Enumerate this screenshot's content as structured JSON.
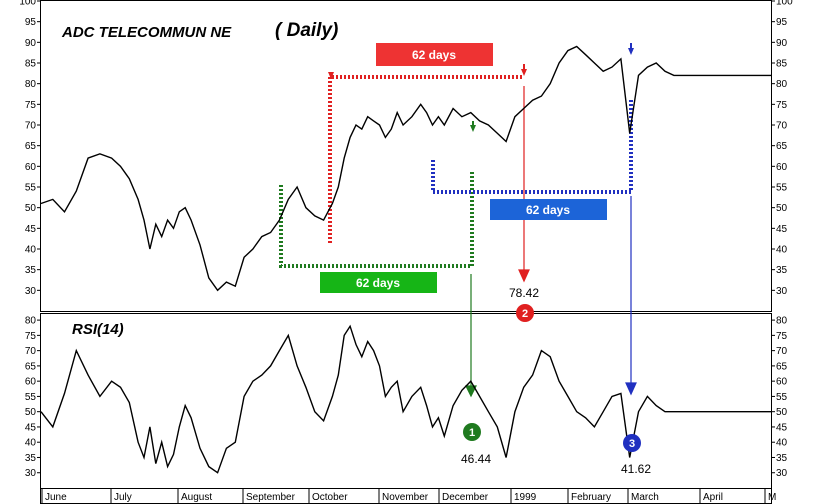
{
  "chart_data": [
    {
      "type": "line",
      "title": "ADC TELECOMMUN NE",
      "subtitle": "( Daily)",
      "y_axis_side": "both",
      "ylim": [
        25,
        100
      ],
      "yticks": [
        30,
        35,
        40,
        45,
        50,
        55,
        60,
        65,
        70,
        75,
        80,
        85,
        90,
        95,
        100
      ],
      "grid": false,
      "x_months": [
        "June",
        "July",
        "August",
        "September",
        "October",
        "November",
        "December",
        "1999",
        "February",
        "March",
        "April",
        "M"
      ],
      "series": [
        {
          "x": [
            0,
            4,
            8,
            12,
            16,
            20,
            24,
            27,
            30,
            33,
            35,
            37,
            39,
            41,
            43,
            45,
            47,
            49,
            51,
            54,
            57,
            60,
            63,
            66,
            69,
            72,
            75,
            78,
            81,
            84,
            87,
            90,
            93,
            96,
            99,
            101,
            103,
            105,
            107,
            109,
            111,
            113,
            115,
            117,
            119,
            121,
            123,
            126,
            129,
            131,
            133,
            135,
            137,
            140,
            143,
            146,
            149,
            152,
            155,
            158,
            161,
            164,
            167,
            170,
            173,
            176,
            179,
            182,
            185,
            188,
            191,
            194,
            197,
            200,
            203,
            206,
            209,
            212,
            215,
            218,
            221,
            224,
            227,
            230,
            233,
            236,
            239,
            242,
            245,
            248
          ],
          "values": [
            51,
            52,
            49,
            54,
            62,
            63,
            62,
            60,
            57,
            52,
            47,
            40,
            46,
            43,
            47,
            45,
            49,
            50,
            47,
            41,
            33,
            30,
            32,
            31,
            38,
            40,
            43,
            44,
            47,
            52,
            55,
            50,
            48,
            47,
            51,
            55,
            62,
            67,
            70,
            69,
            72,
            71,
            70,
            67,
            69,
            73,
            70,
            72,
            75,
            73,
            70,
            72,
            70,
            74,
            72,
            73,
            71,
            70,
            68,
            66,
            72,
            74,
            76,
            77,
            80,
            85,
            88,
            89,
            87,
            85,
            83,
            84,
            86,
            68,
            82,
            84,
            85,
            83,
            82,
            82,
            82,
            82,
            82,
            82,
            82,
            82,
            82,
            82,
            82,
            82
          ]
        }
      ]
    },
    {
      "type": "line",
      "title": "RSI(14)",
      "y_axis_side": "both",
      "ylim": [
        25,
        82
      ],
      "yticks": [
        30,
        35,
        40,
        45,
        50,
        55,
        60,
        65,
        70,
        75,
        80
      ],
      "grid": false,
      "series": [
        {
          "x": [
            0,
            4,
            8,
            12,
            16,
            20,
            24,
            27,
            30,
            33,
            35,
            37,
            39,
            41,
            43,
            45,
            47,
            49,
            51,
            54,
            57,
            60,
            63,
            66,
            69,
            72,
            75,
            78,
            81,
            84,
            87,
            90,
            93,
            96,
            99,
            101,
            103,
            105,
            107,
            109,
            111,
            113,
            115,
            117,
            119,
            121,
            123,
            126,
            129,
            131,
            133,
            135,
            137,
            140,
            143,
            146,
            149,
            152,
            155,
            158,
            161,
            164,
            167,
            170,
            173,
            176,
            179,
            182,
            185,
            188,
            191,
            194,
            197,
            200,
            203,
            206,
            209,
            212,
            215,
            218,
            221,
            224,
            227,
            230,
            233,
            236,
            239,
            242,
            245,
            248
          ],
          "values": [
            50,
            45,
            56,
            70,
            62,
            55,
            60,
            58,
            53,
            40,
            35,
            45,
            33,
            40,
            32,
            36,
            45,
            52,
            48,
            38,
            32,
            30,
            38,
            40,
            55,
            60,
            62,
            65,
            70,
            75,
            65,
            58,
            50,
            47,
            55,
            62,
            75,
            78,
            72,
            68,
            73,
            70,
            65,
            55,
            58,
            60,
            50,
            55,
            58,
            52,
            45,
            48,
            42,
            52,
            57,
            60,
            55,
            50,
            45,
            35,
            50,
            58,
            62,
            70,
            68,
            60,
            55,
            50,
            48,
            45,
            50,
            55,
            56,
            35,
            50,
            55,
            52,
            50,
            50,
            50,
            50,
            50,
            50,
            50,
            50,
            50,
            50,
            50,
            50,
            50
          ]
        }
      ]
    }
  ],
  "annotations": {
    "cycle_label": "62 days",
    "divergence_points": [
      {
        "badge": "1",
        "value_label": "46.44",
        "color": "#1f7a1f"
      },
      {
        "badge": "2",
        "value_label": "78.42",
        "color": "#e02020"
      },
      {
        "badge": "3",
        "value_label": "41.62",
        "color": "#2030c0"
      }
    ],
    "colors": {
      "green": "#1f7a1f",
      "red": "#e02020",
      "blue": "#2030c0",
      "box_green": "#16b516",
      "box_red": "#ee3333",
      "box_blue": "#1c64d8"
    }
  }
}
